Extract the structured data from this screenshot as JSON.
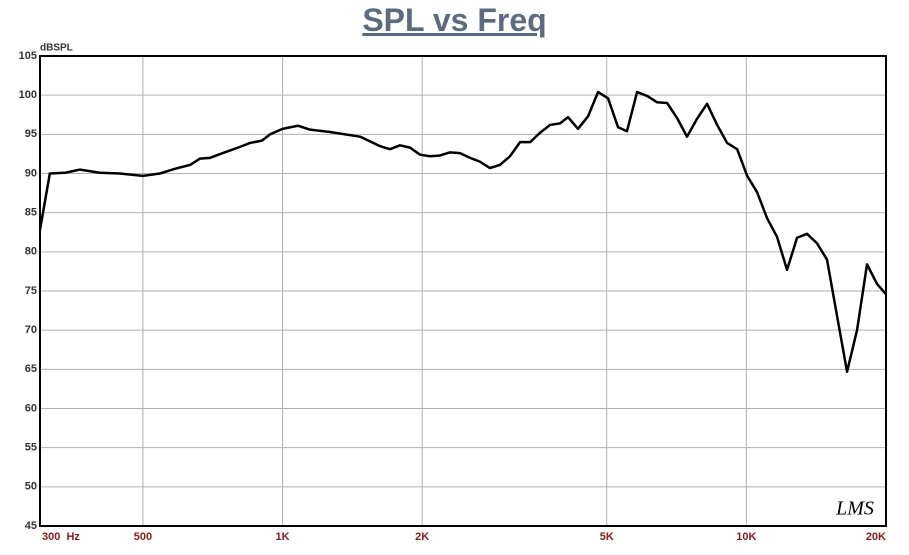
{
  "chart_data": {
    "type": "line",
    "title": "SPL vs Freq",
    "y_label": "dBSPL",
    "watermark": "LMS",
    "xscale": "log",
    "grid": true,
    "xlim": [
      300,
      20000
    ],
    "ylim": [
      45,
      105
    ],
    "xticks": [
      {
        "value": 300,
        "label": "300  Hz"
      },
      500,
      {
        "value": 1000,
        "label": "1K"
      },
      {
        "value": 2000,
        "label": "2K"
      },
      {
        "value": 5000,
        "label": "5K"
      },
      {
        "value": 10000,
        "label": "10K"
      },
      {
        "value": 20000,
        "label": "20K"
      }
    ],
    "yticks": [
      45,
      50,
      55,
      60,
      65,
      70,
      75,
      80,
      85,
      90,
      95,
      100,
      105
    ],
    "series": [
      {
        "color": "#000000",
        "x": [
          300,
          315,
          340,
          366,
          404,
          446,
          500,
          544,
          586,
          632,
          664,
          698,
          751,
          810,
          851,
          903,
          940,
          1000,
          1080,
          1146,
          1266,
          1470,
          1622,
          1705,
          1791,
          1883,
          1979,
          2080,
          2186,
          2297,
          2414,
          2537,
          2665,
          2800,
          2943,
          3093,
          3251,
          3417,
          3591,
          3774,
          3966,
          4126,
          4335,
          4557,
          4789,
          5033,
          5290,
          5528,
          5813,
          6109,
          6415,
          6747,
          7087,
          7449,
          7831,
          8227,
          8650,
          9088,
          9553,
          10040,
          10549,
          11083,
          11647,
          12238,
          12860,
          13515,
          14197,
          14924,
          15687,
          16485,
          17322,
          18202,
          19128,
          20000
        ],
        "values": [
          82.8,
          90.0,
          90.1,
          90.5,
          90.1,
          90.0,
          89.7,
          90.0,
          90.6,
          91.1,
          91.9,
          92.0,
          92.7,
          93.4,
          93.9,
          94.2,
          95.0,
          95.7,
          96.1,
          95.6,
          95.3,
          94.7,
          93.5,
          93.1,
          93.6,
          93.3,
          92.4,
          92.2,
          92.3,
          92.7,
          92.6,
          92.0,
          91.5,
          90.7,
          91.1,
          92.2,
          94.0,
          94.0,
          95.2,
          96.2,
          96.4,
          97.2,
          95.7,
          97.3,
          100.4,
          99.6,
          95.9,
          95.4,
          100.4,
          99.9,
          99.1,
          99.0,
          97.1,
          94.7,
          97.0,
          98.9,
          96.2,
          93.9,
          93.1,
          89.7,
          87.6,
          84.3,
          81.9,
          77.7,
          81.8,
          82.3,
          81.1,
          79.0,
          71.8,
          64.7,
          70.0,
          78.4,
          75.9,
          74.6
        ]
      }
    ]
  }
}
